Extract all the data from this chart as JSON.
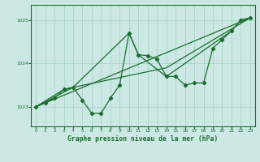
{
  "bg_color": "#cce8e4",
  "grid_color": "#aad4cc",
  "line_color": "#1a6e2e",
  "title": "Graphe pression niveau de la mer (hPa)",
  "ylim": [
    1022.55,
    1025.35
  ],
  "xlim": [
    -0.5,
    23.5
  ],
  "yticks": [
    1023,
    1024,
    1025
  ],
  "xticks": [
    0,
    1,
    2,
    3,
    4,
    5,
    6,
    7,
    8,
    9,
    10,
    11,
    12,
    13,
    14,
    15,
    16,
    17,
    18,
    19,
    20,
    21,
    22,
    23
  ],
  "line1_x": [
    0,
    1,
    2,
    3,
    4,
    5,
    6,
    7,
    8,
    9,
    10,
    11,
    12,
    13,
    14,
    15,
    16,
    17,
    18,
    19,
    20,
    21,
    22,
    23
  ],
  "line1_y": [
    1023.0,
    1023.1,
    1023.2,
    1023.4,
    1023.45,
    1023.15,
    1022.85,
    1022.85,
    1023.2,
    1023.5,
    1024.7,
    1024.2,
    1024.18,
    1024.1,
    1023.7,
    1023.7,
    1023.5,
    1023.55,
    1023.55,
    1024.35,
    1024.55,
    1024.75,
    1025.0,
    1025.05
  ],
  "line2_x": [
    0,
    3,
    4,
    10,
    11,
    14,
    21,
    22,
    23
  ],
  "line2_y": [
    1023.0,
    1023.4,
    1023.45,
    1024.7,
    1024.2,
    1023.7,
    1024.75,
    1025.0,
    1025.05
  ],
  "line3_x": [
    0,
    23
  ],
  "line3_y": [
    1023.0,
    1025.05
  ],
  "line4_x": [
    0,
    4,
    14,
    23
  ],
  "line4_y": [
    1023.0,
    1023.45,
    1023.9,
    1025.05
  ]
}
